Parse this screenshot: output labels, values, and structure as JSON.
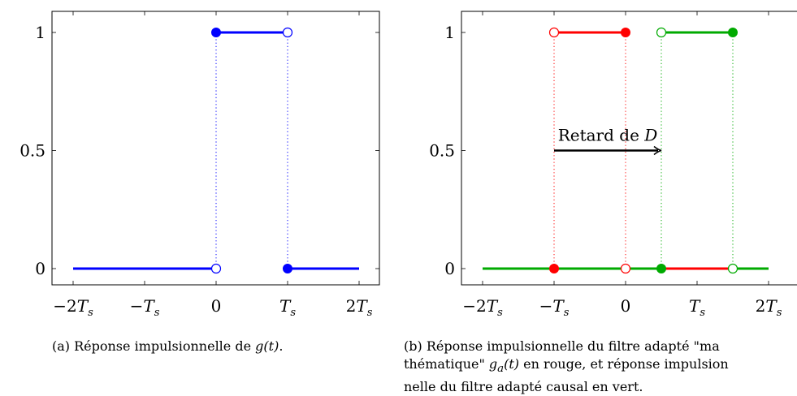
{
  "chart_data": [
    {
      "type": "line",
      "xlim": [
        -2,
        2
      ],
      "ylim": [
        0,
        1
      ],
      "x_ticks": [
        -2,
        -1,
        0,
        1,
        2
      ],
      "x_tick_labels": [
        "−2T",
        "−T",
        "0",
        "T",
        "2T"
      ],
      "x_tick_subscripts": [
        "s",
        "s",
        "",
        "s",
        "s"
      ],
      "y_ticks": [
        0,
        0.5,
        1
      ],
      "y_tick_labels": [
        "0",
        "0.5",
        "1"
      ],
      "grid": false,
      "series": [
        {
          "color": "#0000ff",
          "segments": [
            {
              "x": [
                -2,
                0
              ],
              "y": [
                0,
                0
              ]
            },
            {
              "x": [
                0,
                1
              ],
              "y": [
                1,
                1
              ]
            },
            {
              "x": [
                1,
                2
              ],
              "y": [
                0,
                0
              ]
            }
          ],
          "filled_points": [
            {
              "x": 0,
              "y": 1
            },
            {
              "x": 1,
              "y": 0
            }
          ],
          "open_points": [
            {
              "x": 0,
              "y": 0
            },
            {
              "x": 1,
              "y": 1
            }
          ],
          "dotted_verticals": [
            0,
            1
          ]
        }
      ],
      "caption": {
        "prefix": "(a) Réponse impulsionnelle de ",
        "math": "g(t)",
        "suffix": "."
      }
    },
    {
      "type": "line",
      "xlim": [
        -2,
        2
      ],
      "ylim": [
        0,
        1
      ],
      "x_ticks": [
        -2,
        -1,
        0,
        1,
        2
      ],
      "x_tick_labels": [
        "−2T",
        "−T",
        "0",
        "T",
        "2T"
      ],
      "x_tick_subscripts": [
        "s",
        "s",
        "",
        "s",
        "s"
      ],
      "y_ticks": [
        0,
        0.5,
        1
      ],
      "y_tick_labels": [
        "0",
        "0.5",
        "1"
      ],
      "grid": false,
      "series": [
        {
          "color": "#ff0000",
          "segments": [
            {
              "x": [
                -1,
                0
              ],
              "y": [
                1,
                1
              ]
            },
            {
              "x": [
                0.5,
                1.5
              ],
              "y": [
                0,
                0
              ]
            }
          ],
          "filled_points": [
            {
              "x": 0,
              "y": 1
            },
            {
              "x": -1,
              "y": 0
            }
          ],
          "open_points": [
            {
              "x": -1,
              "y": 1
            },
            {
              "x": 0,
              "y": 0
            }
          ],
          "dotted_verticals": [
            -1,
            0
          ]
        },
        {
          "color": "#00aa00",
          "segments": [
            {
              "x": [
                -2,
                0.5
              ],
              "y": [
                0,
                0
              ]
            },
            {
              "x": [
                0.5,
                1.5
              ],
              "y": [
                1,
                1
              ]
            },
            {
              "x": [
                1.5,
                2
              ],
              "y": [
                0,
                0
              ]
            }
          ],
          "filled_points": [
            {
              "x": 1.5,
              "y": 1
            },
            {
              "x": 0.5,
              "y": 0
            }
          ],
          "open_points": [
            {
              "x": 0.5,
              "y": 1
            },
            {
              "x": 1.5,
              "y": 0
            }
          ],
          "dotted_verticals": [
            0.5,
            1.5
          ]
        }
      ],
      "annotation": {
        "text": "Retard de ",
        "math": "D",
        "arrow_from": {
          "x": -1,
          "y": 0.5
        },
        "arrow_to": {
          "x": 0.5,
          "y": 0.5
        }
      },
      "caption": {
        "line1_prefix": "(b) Réponse impulsionnelle du filtre adapté \"ma",
        "line2_prefix": "thématique\" ",
        "line2_math": "g",
        "line2_math_sub": "a",
        "line2_math_rest": "(t)",
        "line2_suffix": " en rouge, et réponse impulsion",
        "line3": "nelle du filtre adapté causal en vert."
      }
    }
  ]
}
